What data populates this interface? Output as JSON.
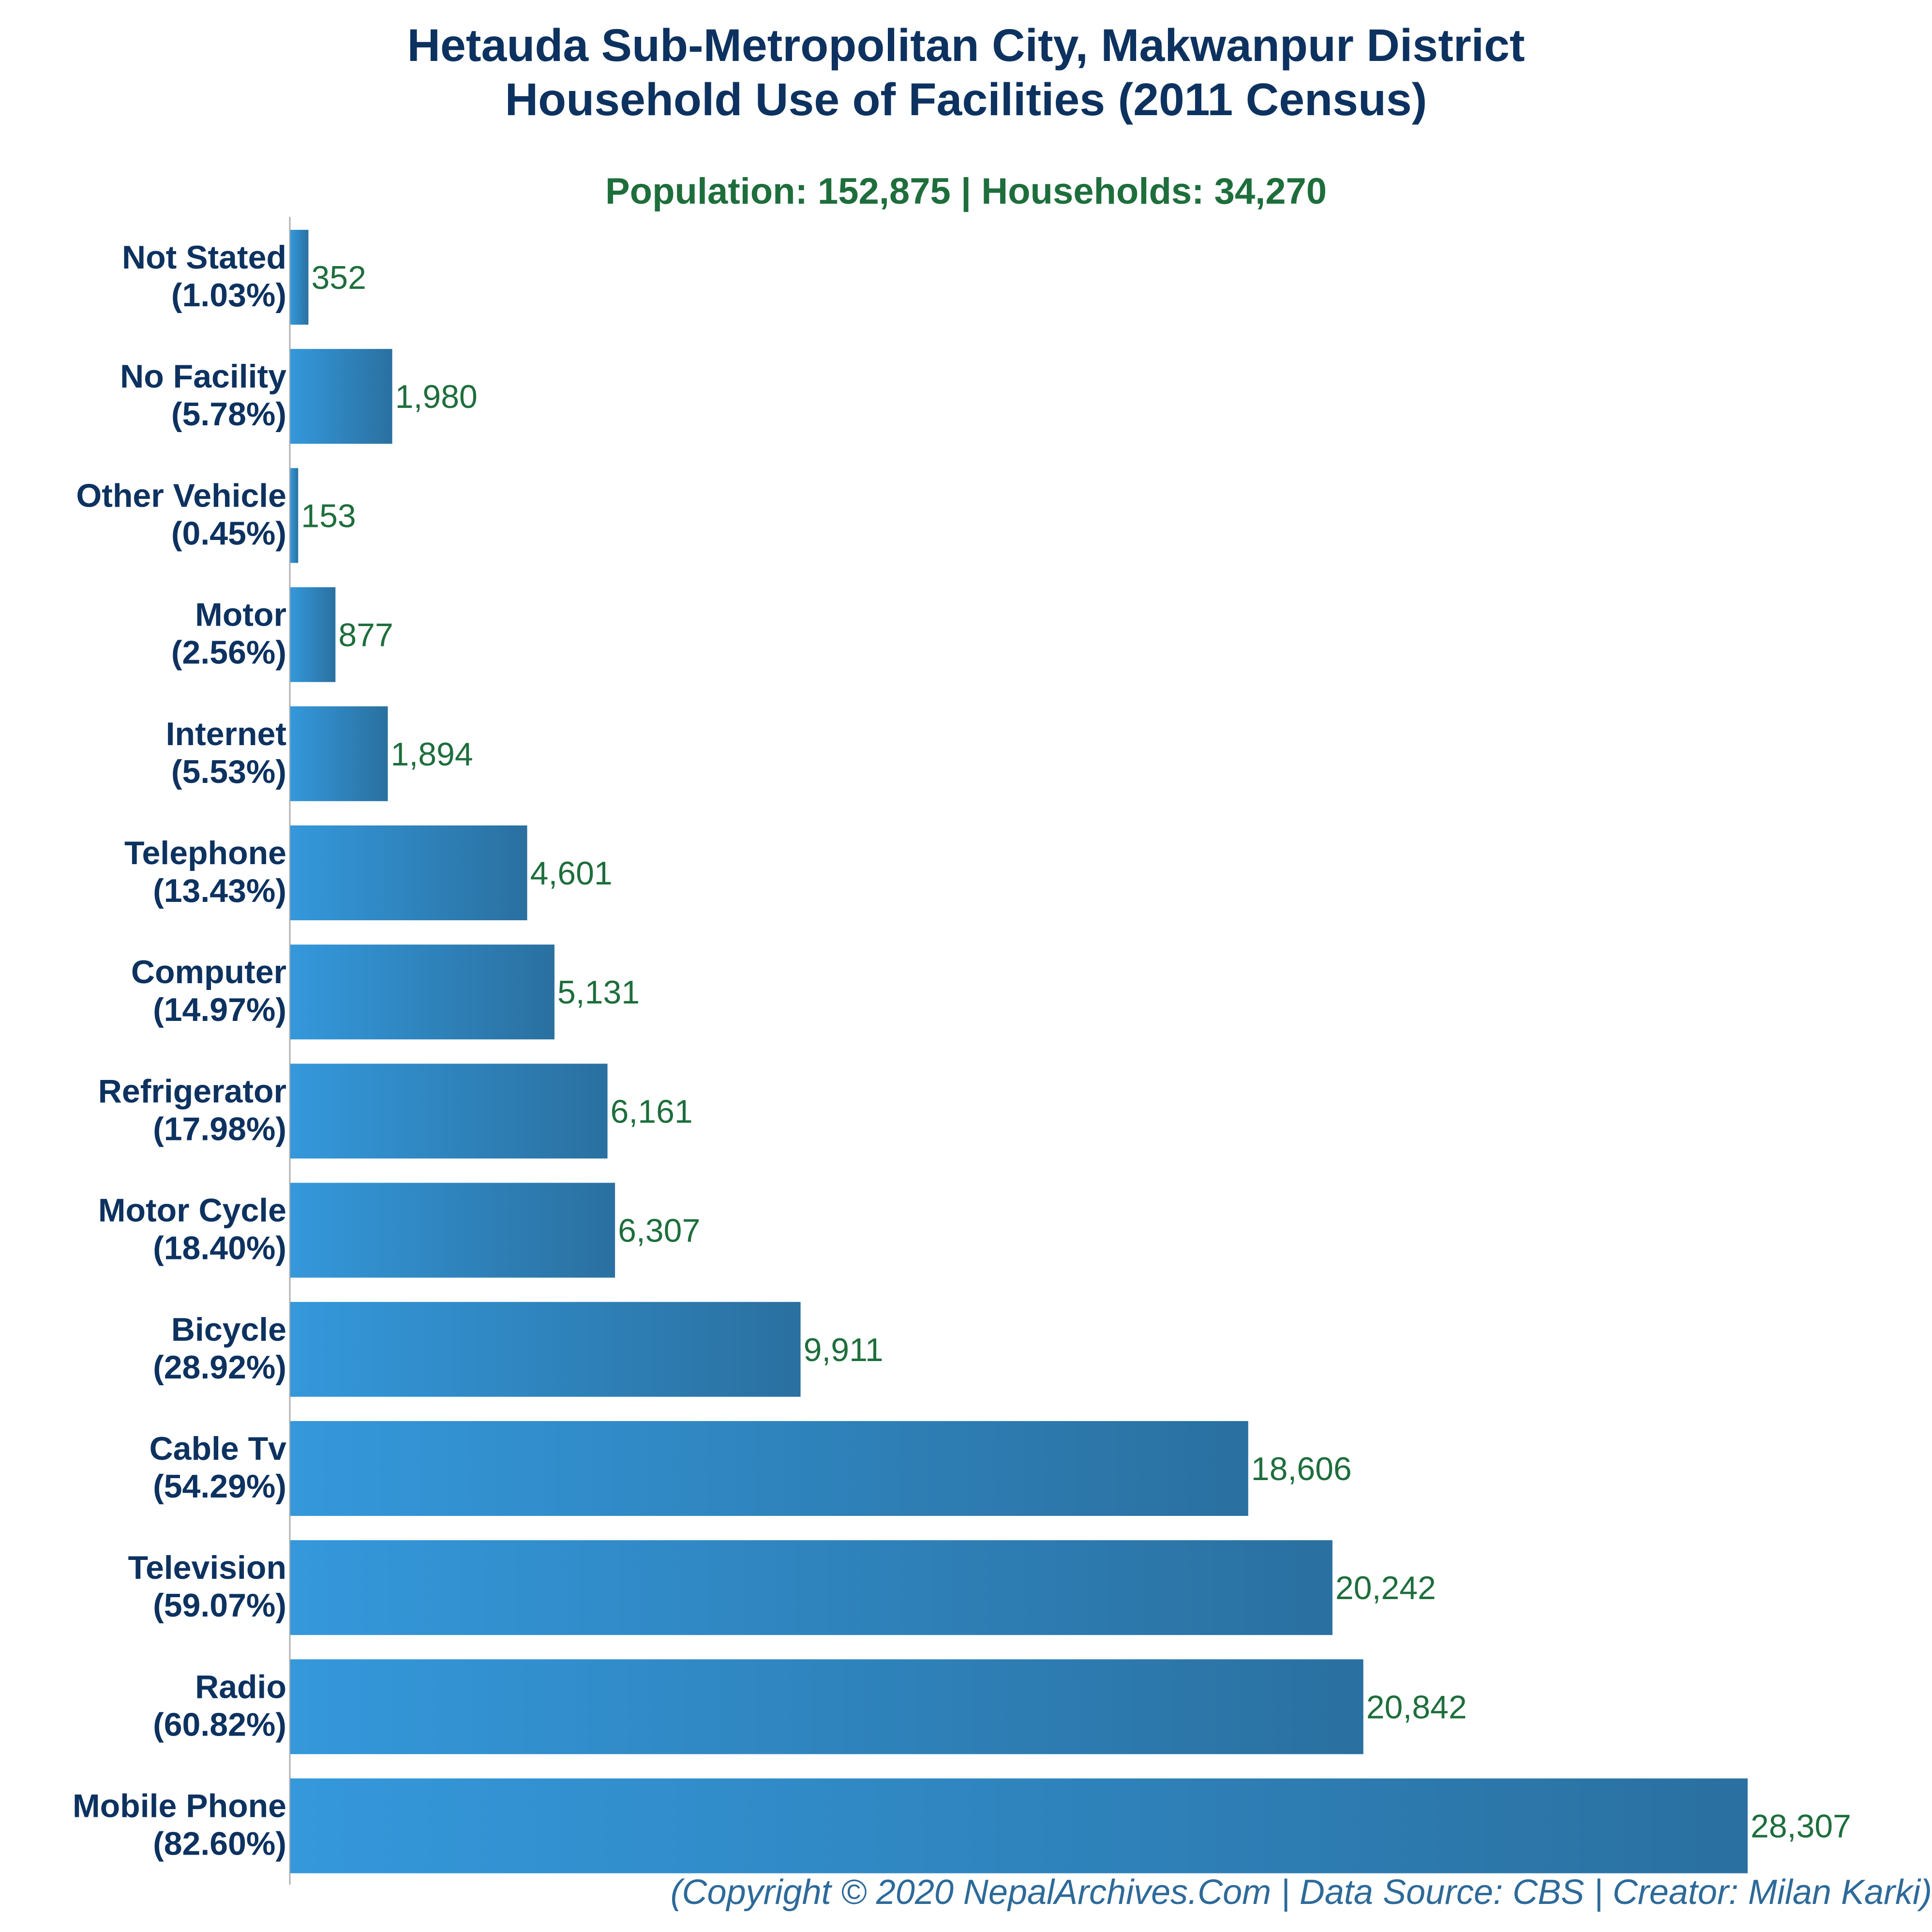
{
  "title_line1": "Hetauda Sub-Metropolitan City, Makwanpur District",
  "title_line2": "Household Use of Facilities (2011 Census)",
  "subtitle": "Population: 152,875 | Households: 34,270",
  "footer": "(Copyright © 2020 NepalArchives.Com | Data Source: CBS | Creator: Milan Karki)",
  "colors": {
    "bar_start": "#3498db",
    "bar_end": "#2a70a0",
    "title": "#0d3260",
    "value": "#1e6e3c",
    "footer": "#2d6a99"
  },
  "chart_data": {
    "type": "bar",
    "orientation": "horizontal",
    "categories": [
      "Not Stated",
      "No Facility",
      "Other Vehicle",
      "Motor",
      "Internet",
      "Telephone",
      "Computer",
      "Refrigerator",
      "Motor Cycle",
      "Bicycle",
      "Cable Tv",
      "Television",
      "Radio",
      "Mobile Phone"
    ],
    "percent_labels": [
      "(1.03%)",
      "(5.78%)",
      "(0.45%)",
      "(2.56%)",
      "(5.53%)",
      "(13.43%)",
      "(14.97%)",
      "(17.98%)",
      "(18.40%)",
      "(28.92%)",
      "(54.29%)",
      "(59.07%)",
      "(60.82%)",
      "(82.60%)"
    ],
    "values": [
      352,
      1980,
      153,
      877,
      1894,
      4601,
      5131,
      6161,
      6307,
      9911,
      18606,
      20242,
      20842,
      28307
    ],
    "value_labels": [
      "352",
      "1,980",
      "153",
      "877",
      "1,894",
      "4,601",
      "5,131",
      "6,161",
      "6,307",
      "9,911",
      "18,606",
      "20,242",
      "20,842",
      "28,307"
    ],
    "xlim": [
      0,
      28307
    ],
    "grid": false,
    "legend": "none"
  }
}
